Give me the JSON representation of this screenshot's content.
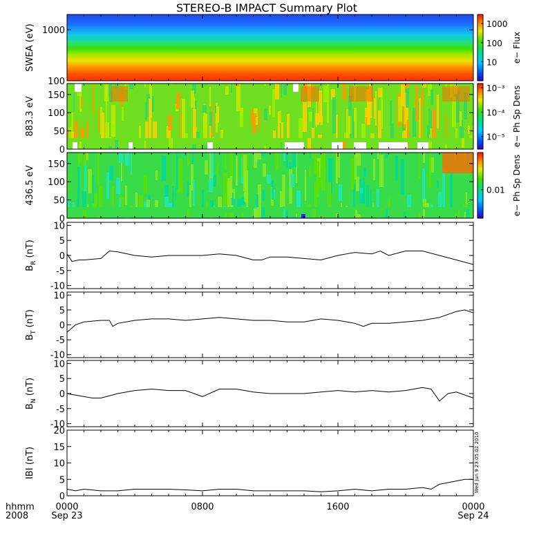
{
  "title": "STEREO-B IMPACT Summary Plot",
  "footer": {
    "row1_label": "hhmm",
    "row2_label": "2008",
    "ticks": [
      {
        "time": "0000",
        "date": "Sep 23",
        "hour": 0
      },
      {
        "time": "0800",
        "date": "",
        "hour": 8
      },
      {
        "time": "1600",
        "date": "",
        "hour": 16
      },
      {
        "time": "0000",
        "date": "Sep 24",
        "hour": 24
      }
    ]
  },
  "timestamp": "Wed Jun  9 23:05:02 2010",
  "chart_data": [
    {
      "type": "heatmap",
      "ylabel": "SWEA (eV)",
      "y_scale": "log",
      "ylim": [
        100,
        2000
      ],
      "yticks": [
        {
          "value": 100,
          "label": "100"
        },
        {
          "value": 1000,
          "label": "1000"
        }
      ],
      "colorbar": {
        "label": "e− Flux",
        "scale": "log",
        "range": [
          1,
          3000
        ],
        "ticks": [
          {
            "value": 10,
            "label": "10"
          },
          {
            "value": 100,
            "label": "100"
          },
          {
            "value": 1000,
            "label": "1000"
          }
        ]
      }
    },
    {
      "type": "heatmap",
      "ylabel": "883.3 eV",
      "ylim": [
        0,
        180
      ],
      "yticks": [
        {
          "value": 0,
          "label": "0"
        },
        {
          "value": 50,
          "label": "50"
        },
        {
          "value": 100,
          "label": "100"
        },
        {
          "value": 150,
          "label": "150"
        }
      ],
      "colorbar": {
        "label": "e− Ph Sp Dens",
        "scale": "log",
        "range": [
          3e-06,
          0.0015
        ],
        "ticks": [
          {
            "value": 1e-05,
            "label": "10⁻⁵"
          },
          {
            "value": 0.0001,
            "label": "10⁻⁴"
          },
          {
            "value": 0.001,
            "label": "10⁻³"
          }
        ]
      }
    },
    {
      "type": "heatmap",
      "ylabel": "436.5 eV",
      "ylim": [
        0,
        180
      ],
      "yticks": [
        {
          "value": 0,
          "label": "0"
        },
        {
          "value": 50,
          "label": "50"
        },
        {
          "value": 100,
          "label": "100"
        },
        {
          "value": 150,
          "label": "150"
        }
      ],
      "colorbar": {
        "label": "e− Ph Sp Dens",
        "scale": "log",
        "range": [
          0.001,
          0.2
        ],
        "ticks": [
          {
            "value": 0.01,
            "label": "0.01"
          }
        ]
      }
    },
    {
      "type": "line",
      "ylabel": {
        "main": "B",
        "sub": "R",
        "unit": " (nT)"
      },
      "ylim": [
        -11,
        11
      ],
      "yticks": [
        -10,
        -5,
        0,
        5,
        10
      ],
      "x": [
        0,
        0.3,
        0.7,
        1,
        2,
        2.5,
        3,
        4,
        5,
        6,
        7,
        8,
        9,
        10,
        11,
        11.5,
        12,
        13,
        14,
        15,
        16,
        17,
        18,
        18.5,
        19,
        20,
        21,
        22,
        23,
        24
      ],
      "values": [
        0.5,
        -2,
        -1.5,
        -1.5,
        -1,
        1.5,
        1.2,
        0,
        -0.5,
        0,
        0,
        0,
        0.5,
        0,
        -1.5,
        -1.5,
        -0.5,
        -0.5,
        -1,
        -1.5,
        0,
        1,
        0.5,
        1.5,
        0,
        1.5,
        1.5,
        0,
        -1.5,
        -3
      ]
    },
    {
      "type": "line",
      "ylabel": {
        "main": "B",
        "sub": "T",
        "unit": " (nT)"
      },
      "ylim": [
        -11,
        11
      ],
      "yticks": [
        -10,
        -5,
        0,
        5,
        10
      ],
      "x": [
        0,
        0.5,
        1,
        2,
        2.5,
        2.7,
        3,
        4,
        5,
        6,
        7,
        8,
        9,
        10,
        11,
        12,
        13,
        14,
        15,
        16,
        17,
        17.5,
        18,
        19,
        20,
        21,
        22,
        23,
        23.5,
        24
      ],
      "values": [
        -2.5,
        0,
        1,
        1.5,
        1.5,
        -0.5,
        0.5,
        1.5,
        2,
        2,
        1.5,
        2,
        2.5,
        2,
        1.5,
        1.5,
        1,
        1,
        2,
        1.5,
        0.5,
        -0.5,
        0.5,
        0.5,
        1,
        1.5,
        2.5,
        4.5,
        5,
        4
      ]
    },
    {
      "type": "line",
      "ylabel": {
        "main": "B",
        "sub": "N",
        "unit": " (nT)"
      },
      "ylim": [
        -11,
        11
      ],
      "yticks": [
        -10,
        -5,
        0,
        5,
        10
      ],
      "x": [
        0,
        0.5,
        1,
        1.5,
        2,
        3,
        4,
        5,
        6,
        7,
        7.5,
        8,
        9,
        10,
        11,
        12,
        13,
        14,
        15,
        16,
        17,
        18,
        19,
        20,
        21,
        21.5,
        22,
        22.5,
        23,
        24
      ],
      "values": [
        0,
        -0.5,
        -1,
        -1.5,
        -1.5,
        0,
        1,
        1.5,
        1,
        1,
        0,
        -1,
        1.5,
        1.5,
        0.5,
        0,
        0,
        0,
        0.5,
        1,
        0.5,
        1,
        0.5,
        1,
        2,
        1.5,
        -2.5,
        0,
        0.5,
        -1.5
      ]
    },
    {
      "type": "line",
      "ylabel": {
        "main": "IBI",
        "sub": "",
        "unit": " (nT)"
      },
      "ylim": [
        0,
        20
      ],
      "yticks": [
        0,
        5,
        10,
        15,
        20
      ],
      "x": [
        0,
        0.5,
        1,
        2,
        3,
        4,
        5,
        6,
        7,
        8,
        9,
        10,
        11,
        12,
        13,
        14,
        15,
        16,
        17,
        18,
        19,
        20,
        21,
        21.5,
        22,
        23,
        23.5,
        24
      ],
      "values": [
        2,
        1.5,
        2,
        1.5,
        1.5,
        2,
        2,
        2,
        1.8,
        1.5,
        2,
        2,
        1.5,
        1.5,
        1.5,
        1.5,
        1.2,
        1.5,
        2,
        1.5,
        2,
        2,
        2.5,
        2,
        3.5,
        4.5,
        5,
        5
      ]
    }
  ]
}
